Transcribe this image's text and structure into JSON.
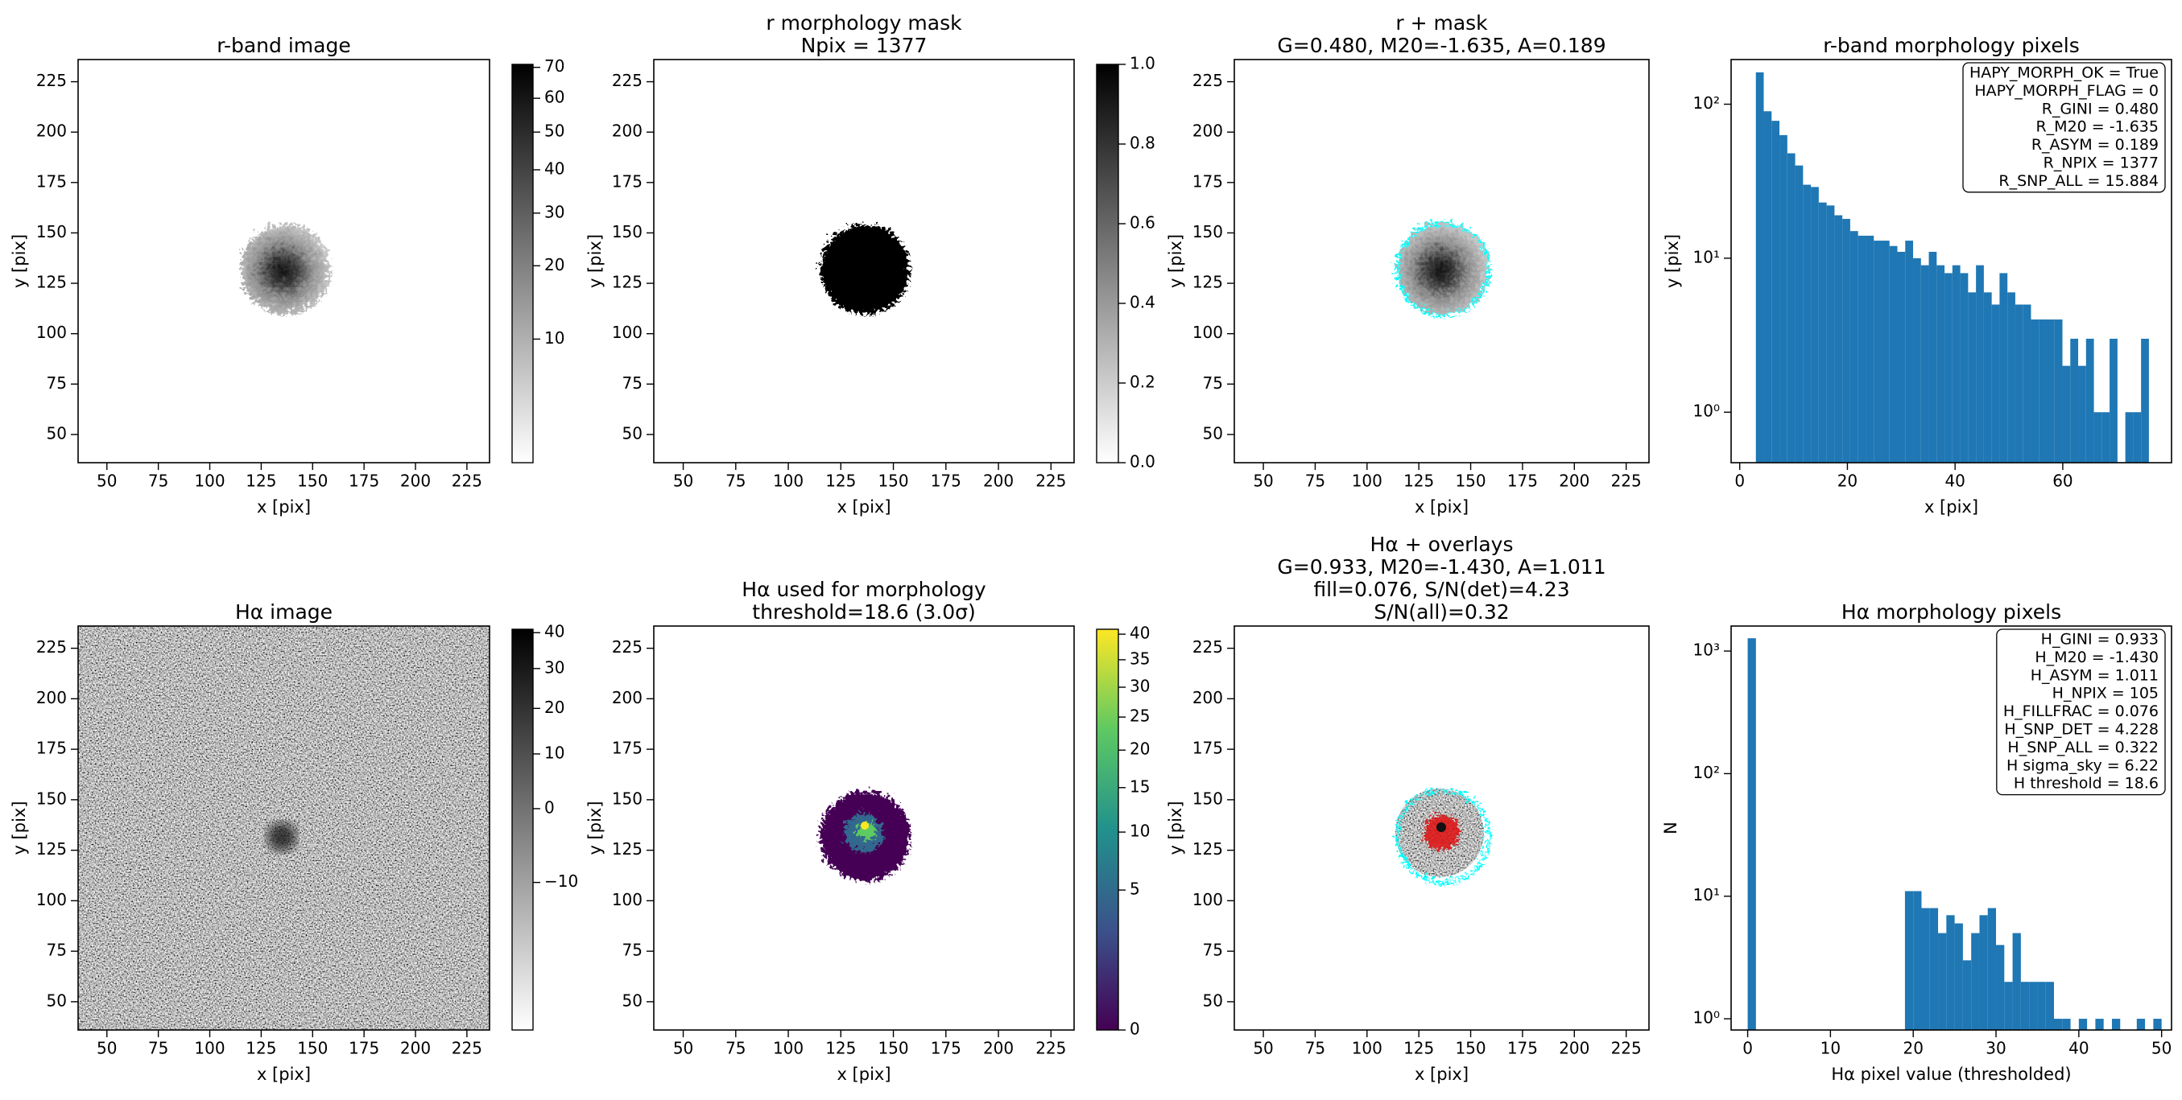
{
  "chart_data": [
    {
      "type": "image",
      "title": [
        "r-band image"
      ],
      "xlabel": "x [pix]",
      "ylabel": "y [pix]",
      "xlim": [
        36,
        236
      ],
      "ylim": [
        36,
        236
      ],
      "xticks": [
        50,
        75,
        100,
        125,
        150,
        175,
        200,
        225
      ],
      "yticks": [
        50,
        75,
        100,
        125,
        150,
        175,
        200,
        225
      ],
      "colorbar": {
        "cmap": "gray_r",
        "scale": "sqrt",
        "clim": [
          3.5,
          71
        ],
        "ticks": [
          10,
          20,
          30,
          40,
          50,
          60,
          70
        ]
      }
    },
    {
      "type": "image",
      "title": [
        "r morphology mask",
        "Npix = 1377"
      ],
      "xlabel": "x [pix]",
      "ylabel": "y [pix]",
      "xlim": [
        36,
        236
      ],
      "ylim": [
        36,
        236
      ],
      "xticks": [
        50,
        75,
        100,
        125,
        150,
        175,
        200,
        225
      ],
      "yticks": [
        50,
        75,
        100,
        125,
        150,
        175,
        200,
        225
      ],
      "colorbar": {
        "cmap": "gray_r",
        "scale": "linear",
        "clim": [
          0,
          1
        ],
        "ticks": [
          {
            "value": 0,
            "label": "0.0"
          },
          {
            "value": 0.2,
            "label": "0.2"
          },
          {
            "value": 0.4,
            "label": "0.4"
          },
          {
            "value": 0.6,
            "label": "0.6"
          },
          {
            "value": 0.8,
            "label": "0.8"
          },
          {
            "value": 1,
            "label": "1.0"
          }
        ]
      }
    },
    {
      "type": "image",
      "title": [
        "r + mask",
        "G=0.480, M20=-1.635, A=0.189"
      ],
      "xlabel": "x [pix]",
      "ylabel": "y [pix]",
      "xlim": [
        36,
        236
      ],
      "ylim": [
        36,
        236
      ],
      "xticks": [
        50,
        75,
        100,
        125,
        150,
        175,
        200,
        225
      ],
      "yticks": [
        50,
        75,
        100,
        125,
        150,
        175,
        200,
        225
      ]
    },
    {
      "type": "histogram",
      "title": [
        "r-band morphology pixels"
      ],
      "xlabel": "x [pix]",
      "ylabel": "y [pix]",
      "color": "#1f77b4",
      "log_y": true,
      "bins": [
        3.0,
        4.46,
        5.92,
        7.38,
        8.84,
        10.3,
        11.76,
        13.22,
        14.68,
        16.14,
        17.6,
        19.06,
        20.52,
        21.98,
        23.44,
        24.9,
        26.36,
        27.82,
        29.28,
        30.74,
        32.2,
        33.66,
        35.12,
        36.58,
        38.04,
        39.5,
        40.96,
        42.42,
        43.88,
        45.34,
        46.8,
        48.26,
        49.72,
        51.18,
        52.64,
        54.1,
        55.56,
        57.02,
        58.48,
        59.94,
        61.4,
        62.86,
        64.32,
        65.78,
        67.24,
        68.7,
        70.16,
        71.62,
        73.08,
        74.54,
        76.0
      ],
      "counts": [
        161,
        90,
        78,
        63,
        48,
        40,
        30,
        29,
        23,
        22,
        19,
        18,
        15,
        14,
        14,
        13,
        13,
        12,
        11,
        13,
        10,
        9,
        11,
        9,
        8,
        9,
        8,
        6,
        9,
        6,
        5,
        8,
        6,
        5,
        5,
        4,
        4,
        4,
        4,
        2,
        3,
        2,
        3,
        1,
        1,
        3,
        0,
        1,
        1,
        3
      ],
      "xlim": [
        -1.6,
        80.2
      ],
      "ylim": [
        0.47,
        195
      ],
      "xticks": [
        0,
        20,
        40,
        60
      ],
      "yticks": [
        {
          "value": 1,
          "label": "10⁰"
        },
        {
          "value": 10,
          "label": "10¹"
        },
        {
          "value": 100,
          "label": "10²"
        }
      ],
      "annotation": [
        "HAPY_MORPH_OK = True",
        "HAPY_MORPH_FLAG = 0",
        "R_GINI = 0.480",
        "R_M20 = -1.635",
        "R_ASYM = 0.189",
        "R_NPIX = 1377",
        "R_SNP_ALL = 15.884"
      ]
    },
    {
      "type": "image",
      "title": [
        "Hα image"
      ],
      "xlabel": "x [pix]",
      "ylabel": "y [pix]",
      "xlim": [
        36,
        236
      ],
      "ylim": [
        36,
        236
      ],
      "xticks": [
        50,
        75,
        100,
        125,
        150,
        175,
        200,
        225
      ],
      "yticks": [
        50,
        75,
        100,
        125,
        150,
        175,
        200,
        225
      ],
      "colorbar": {
        "cmap": "gray_r",
        "scale": "sqrt",
        "clim": [
          -18,
          41
        ],
        "ticks": [
          {
            "value": -10,
            "label": "−10"
          },
          0,
          10,
          20,
          30,
          40
        ]
      }
    },
    {
      "type": "image",
      "title": [
        "Hα used for morphology",
        "threshold=18.6 (3.0σ)"
      ],
      "xlabel": "x [pix]",
      "ylabel": "y [pix]",
      "xlim": [
        36,
        236
      ],
      "ylim": [
        36,
        236
      ],
      "xticks": [
        50,
        75,
        100,
        125,
        150,
        175,
        200,
        225
      ],
      "yticks": [
        50,
        75,
        100,
        125,
        150,
        175,
        200,
        225
      ],
      "colorbar": {
        "cmap": "viridis",
        "scale": "sqrt",
        "clim": [
          0,
          41
        ],
        "ticks": [
          0,
          5,
          10,
          15,
          20,
          25,
          30,
          35,
          40
        ]
      }
    },
    {
      "type": "image",
      "title": [
        "Hα + overlays",
        "G=0.933, M20=-1.430, A=1.011",
        "fill=0.076, S/N(det)=4.23",
        "S/N(all)=0.32"
      ],
      "xlabel": "x [pix]",
      "ylabel": "y [pix]",
      "xlim": [
        36,
        236
      ],
      "ylim": [
        36,
        236
      ],
      "xticks": [
        50,
        75,
        100,
        125,
        150,
        175,
        200,
        225
      ],
      "yticks": [
        50,
        75,
        100,
        125,
        150,
        175,
        200,
        225
      ]
    },
    {
      "type": "histogram",
      "title": [
        "Hα morphology pixels"
      ],
      "xlabel": "Hα pixel value (thresholded)",
      "ylabel": "N",
      "color": "#1f77b4",
      "log_y": true,
      "bins": [
        0,
        1,
        2,
        3,
        4,
        5,
        6,
        7,
        8,
        9,
        10,
        11,
        12,
        13,
        14,
        15,
        16,
        17,
        18,
        19,
        20,
        21,
        22,
        23,
        24,
        25,
        26,
        27,
        28,
        29,
        30,
        31,
        32,
        33,
        34,
        35,
        36,
        37,
        38,
        39,
        40,
        41,
        42,
        43,
        44,
        45,
        46,
        47,
        48,
        49,
        50
      ],
      "counts": [
        1272,
        0,
        0,
        0,
        0,
        0,
        0,
        0,
        0,
        0,
        0,
        0,
        0,
        0,
        0,
        0,
        0,
        0,
        0,
        11,
        11,
        8,
        8,
        5,
        7,
        6,
        3,
        5,
        7,
        8,
        4,
        2,
        5,
        2,
        2,
        2,
        2,
        1,
        1,
        0,
        1,
        0,
        1,
        0,
        1,
        0,
        0,
        1,
        0,
        1
      ],
      "xlim": [
        -2,
        51.2
      ],
      "ylim": [
        0.81,
        1600
      ],
      "xticks": [
        0,
        10,
        20,
        30,
        40,
        50
      ],
      "yticks": [
        {
          "value": 1,
          "label": "10⁰"
        },
        {
          "value": 10,
          "label": "10¹"
        },
        {
          "value": 100,
          "label": "10²"
        },
        {
          "value": 1000,
          "label": "10³"
        }
      ],
      "annotation": [
        "H_GINI = 0.933",
        "H_M20 = -1.430",
        "H_ASYM = 1.011",
        "H_NPIX = 105",
        "H_FILLFRAC = 0.076",
        "H_SNP_DET = 4.228",
        "H_SNP_ALL = 0.322",
        "H sigma_sky = 6.22",
        "H threshold = 18.6"
      ]
    }
  ]
}
